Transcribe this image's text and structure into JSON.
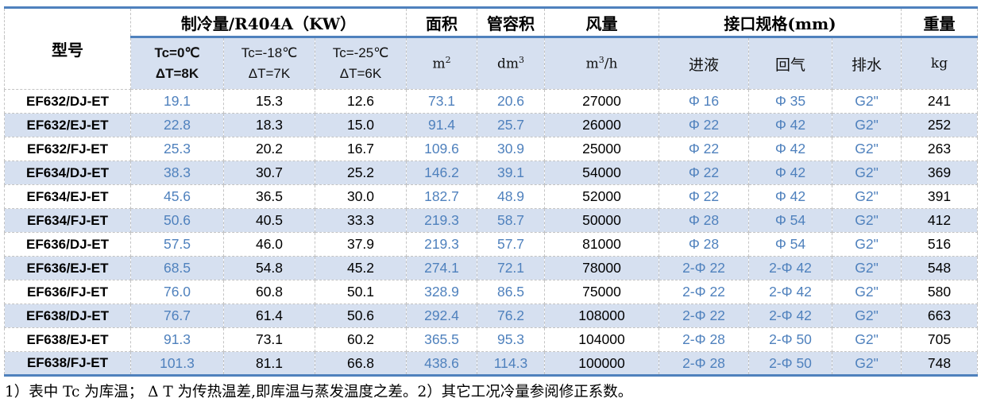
{
  "colors": {
    "accent_border": "#4F81BD",
    "blue_text": "#4F81BD",
    "stripe_fill": "#D6E0F0",
    "gridline": "#C3C3C3"
  },
  "table": {
    "header": {
      "model": "型号",
      "capacity_group": "制冷量/R404A（KW）",
      "capacity_cols": [
        {
          "line1": "Tc=0℃",
          "line2": "ΔT=8K"
        },
        {
          "line1": "Tc=-18℃",
          "line2": "ΔT=7K"
        },
        {
          "line1": "Tc=-25℃",
          "line2": "ΔT=6K"
        }
      ],
      "area_label": "面积",
      "area_unit_base": "m",
      "area_unit_sup": "2",
      "volume_label": "管容积",
      "volume_unit_base": "dm",
      "volume_unit_sup": "3",
      "airflow_label": "风量",
      "airflow_unit_base": "m",
      "airflow_unit_sup": "3",
      "airflow_unit_suffix": "/h",
      "interface_group": "接口规格(mm)",
      "interface_cols": [
        "进液",
        "回气",
        "排水"
      ],
      "weight_label": "重量",
      "weight_unit": "kg"
    },
    "rows": [
      {
        "model": "EF632/DJ-ET",
        "kw_tc0": "19.1",
        "kw_tc18": "15.3",
        "kw_tc25": "12.6",
        "area": "73.1",
        "volume": "20.6",
        "airflow": "27000",
        "liquid_in": "Φ 16",
        "gas_return": "Φ 35",
        "drain": "G2\"",
        "weight": "241"
      },
      {
        "model": "EF632/EJ-ET",
        "kw_tc0": "22.8",
        "kw_tc18": "18.3",
        "kw_tc25": "15.0",
        "area": "91.4",
        "volume": "25.7",
        "airflow": "26000",
        "liquid_in": "Φ 22",
        "gas_return": "Φ 42",
        "drain": "G2\"",
        "weight": "252"
      },
      {
        "model": "EF632/FJ-ET",
        "kw_tc0": "25.3",
        "kw_tc18": "20.2",
        "kw_tc25": "16.7",
        "area": "109.6",
        "volume": "30.9",
        "airflow": "25000",
        "liquid_in": "Φ 22",
        "gas_return": "Φ 42",
        "drain": "G2\"",
        "weight": "263"
      },
      {
        "model": "EF634/DJ-ET",
        "kw_tc0": "38.3",
        "kw_tc18": "30.7",
        "kw_tc25": "25.2",
        "area": "146.2",
        "volume": "39.1",
        "airflow": "54000",
        "liquid_in": "Φ 22",
        "gas_return": "Φ 42",
        "drain": "G2\"",
        "weight": "369"
      },
      {
        "model": "EF634/EJ-ET",
        "kw_tc0": "45.6",
        "kw_tc18": "36.5",
        "kw_tc25": "30.0",
        "area": "182.7",
        "volume": "48.9",
        "airflow": "52000",
        "liquid_in": "Φ 22",
        "gas_return": "Φ 42",
        "drain": "G2\"",
        "weight": "391"
      },
      {
        "model": "EF634/FJ-ET",
        "kw_tc0": "50.6",
        "kw_tc18": "40.5",
        "kw_tc25": "33.3",
        "area": "219.3",
        "volume": "58.7",
        "airflow": "50000",
        "liquid_in": "Φ 28",
        "gas_return": "Φ 54",
        "drain": "G2\"",
        "weight": "412"
      },
      {
        "model": "EF636/DJ-ET",
        "kw_tc0": "57.5",
        "kw_tc18": "46.0",
        "kw_tc25": "37.9",
        "area": "219.3",
        "volume": "57.7",
        "airflow": "81000",
        "liquid_in": "Φ 28",
        "gas_return": "Φ 54",
        "drain": "G2\"",
        "weight": "516"
      },
      {
        "model": "EF636/EJ-ET",
        "kw_tc0": "68.5",
        "kw_tc18": "54.8",
        "kw_tc25": "45.2",
        "area": "274.1",
        "volume": "72.1",
        "airflow": "78000",
        "liquid_in": "2-Φ 22",
        "gas_return": "2-Φ 42",
        "drain": "G2\"",
        "weight": "548"
      },
      {
        "model": "EF636/FJ-ET",
        "kw_tc0": "76.0",
        "kw_tc18": "60.8",
        "kw_tc25": "50.1",
        "area": "328.9",
        "volume": "86.5",
        "airflow": "75000",
        "liquid_in": "2-Φ 22",
        "gas_return": "2-Φ 42",
        "drain": "G2\"",
        "weight": "580"
      },
      {
        "model": "EF638/DJ-ET",
        "kw_tc0": "76.7",
        "kw_tc18": "61.4",
        "kw_tc25": "50.6",
        "area": "292.4",
        "volume": "76.2",
        "airflow": "108000",
        "liquid_in": "2-Φ 22",
        "gas_return": "2-Φ 42",
        "drain": "G2\"",
        "weight": "663"
      },
      {
        "model": "EF638/EJ-ET",
        "kw_tc0": "91.3",
        "kw_tc18": "73.1",
        "kw_tc25": "60.2",
        "area": "365.5",
        "volume": "95.3",
        "airflow": "104000",
        "liquid_in": "2-Φ 28",
        "gas_return": "2-Φ 50",
        "drain": "G2\"",
        "weight": "705"
      },
      {
        "model": "EF638/FJ-ET",
        "kw_tc0": "101.3",
        "kw_tc18": "81.1",
        "kw_tc25": "66.8",
        "area": "438.6",
        "volume": "114.3",
        "airflow": "100000",
        "liquid_in": "2-Φ 28",
        "gas_return": "2-Φ 50",
        "drain": "G2\"",
        "weight": "748"
      }
    ],
    "notes": "1）表中 Tc 为库温； Δ T 为传热温差,即库温与蒸发温度之差。2）其它工况冷量参阅修正系数。"
  }
}
